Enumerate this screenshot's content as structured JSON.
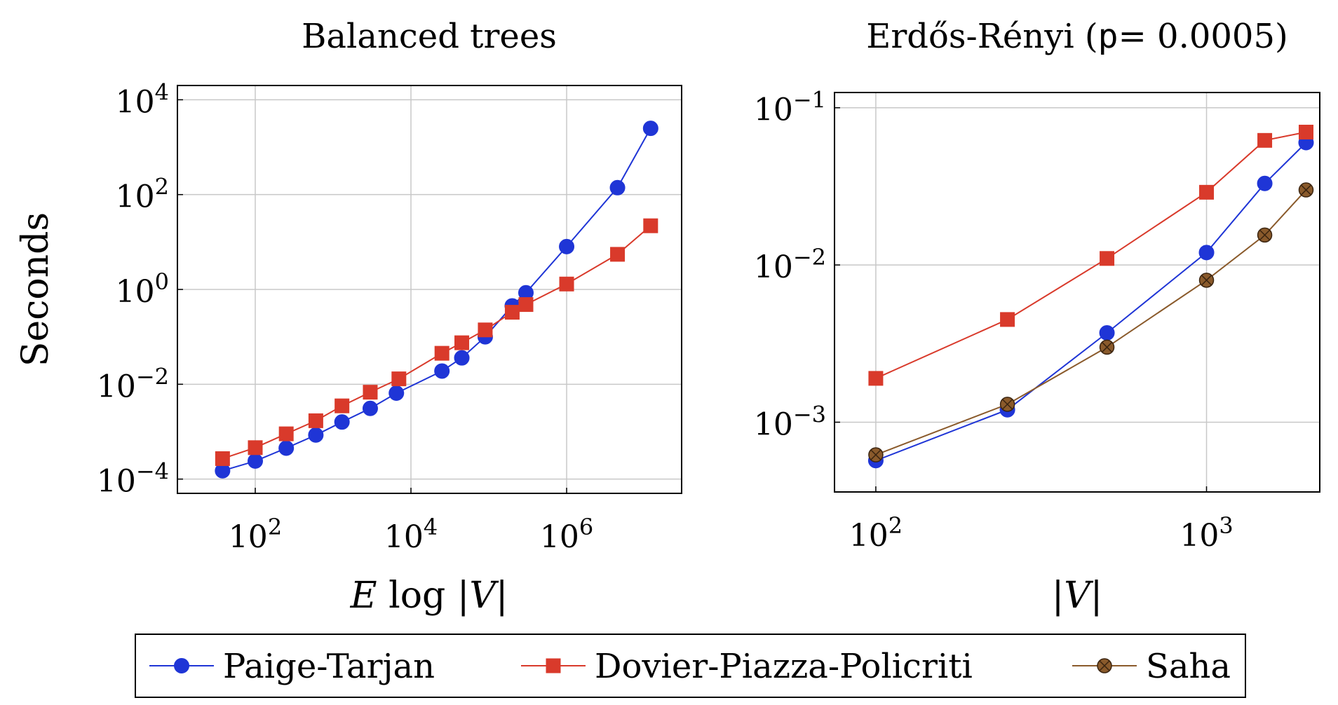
{
  "colors": {
    "paige": "#1f35d6",
    "dovier": "#d93a2b",
    "saha": "#8a5a2b",
    "grid": "#c8c8c8",
    "frame": "#000000"
  },
  "legend": {
    "items": [
      {
        "label": "Paige-Tarjan",
        "marker": "circle",
        "color": "#1f35d6"
      },
      {
        "label": "Dovier-Piazza-Policriti",
        "marker": "square",
        "color": "#d93a2b"
      },
      {
        "label": "Saha",
        "marker": "circle-x",
        "color": "#8a5a2b"
      }
    ]
  },
  "chart_data": [
    {
      "type": "line",
      "title": "Balanced trees",
      "xlabel": "E log |V|",
      "ylabel": "Seconds",
      "xscale": "log",
      "yscale": "log",
      "xlim": [
        10,
        30000000
      ],
      "ylim": [
        5e-05,
        20000
      ],
      "grid": true,
      "xticks": [
        {
          "value": 100,
          "base": "10",
          "exp": "2"
        },
        {
          "value": 10000,
          "base": "10",
          "exp": "4"
        },
        {
          "value": 1000000,
          "base": "10",
          "exp": "6"
        }
      ],
      "yticks": [
        {
          "value": 0.0001,
          "base": "10",
          "exp": "−4"
        },
        {
          "value": 0.01,
          "base": "10",
          "exp": "−2"
        },
        {
          "value": 1,
          "base": "10",
          "exp": "0"
        },
        {
          "value": 100,
          "base": "10",
          "exp": "2"
        },
        {
          "value": 10000,
          "base": "10",
          "exp": "4"
        }
      ],
      "series": [
        {
          "name": "Paige-Tarjan",
          "marker": "circle",
          "x": [
            38,
            100,
            250,
            600,
            1300,
            3000,
            6500,
            25000,
            45000,
            90000,
            200000,
            300000,
            1000000,
            4500000,
            12000000
          ],
          "y": [
            0.00015,
            0.00024,
            0.00045,
            0.00085,
            0.0016,
            0.0031,
            0.0065,
            0.019,
            0.036,
            0.1,
            0.45,
            0.85,
            8,
            140,
            2500
          ]
        },
        {
          "name": "Dovier-Piazza-Policriti",
          "marker": "square",
          "x": [
            38,
            100,
            250,
            600,
            1300,
            3000,
            7000,
            25000,
            45000,
            90000,
            200000,
            300000,
            1000000,
            4500000,
            12000000
          ],
          "y": [
            0.00027,
            0.00046,
            0.0009,
            0.0017,
            0.0035,
            0.0068,
            0.013,
            0.045,
            0.075,
            0.14,
            0.33,
            0.48,
            1.3,
            5.5,
            22
          ]
        }
      ]
    },
    {
      "type": "line",
      "title": "Erdős-Rényi (",
      "title_code": "p",
      "title_rest": "= 0.0005)",
      "xlabel": "|V|",
      "ylabel": "",
      "xscale": "log",
      "yscale": "log",
      "xlim": [
        75,
        2200
      ],
      "ylim": [
        0.00036,
        0.125
      ],
      "grid": true,
      "xticks": [
        {
          "value": 100,
          "base": "10",
          "exp": "2"
        },
        {
          "value": 1000,
          "base": "10",
          "exp": "3"
        }
      ],
      "yticks": [
        {
          "value": 0.001,
          "base": "10",
          "exp": "−3"
        },
        {
          "value": 0.01,
          "base": "10",
          "exp": "−2"
        },
        {
          "value": 0.1,
          "base": "10",
          "exp": "−1"
        }
      ],
      "series": [
        {
          "name": "Paige-Tarjan",
          "marker": "circle",
          "x": [
            100,
            250,
            500,
            1000,
            1500,
            2000
          ],
          "y": [
            0.00057,
            0.0012,
            0.0037,
            0.012,
            0.033,
            0.06
          ]
        },
        {
          "name": "Dovier-Piazza-Policriti",
          "marker": "square",
          "x": [
            100,
            250,
            500,
            1000,
            1500,
            2000
          ],
          "y": [
            0.0019,
            0.0045,
            0.011,
            0.029,
            0.062,
            0.07
          ]
        },
        {
          "name": "Saha",
          "marker": "circle-x",
          "x": [
            100,
            250,
            500,
            1000,
            1500,
            2000
          ],
          "y": [
            0.00062,
            0.0013,
            0.003,
            0.008,
            0.0155,
            0.03
          ]
        }
      ]
    }
  ]
}
